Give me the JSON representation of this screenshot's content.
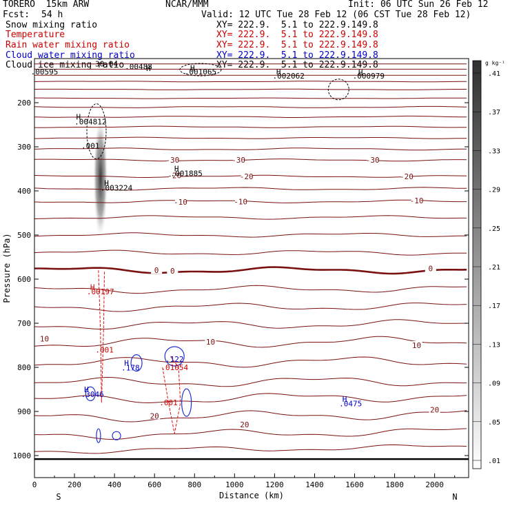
{
  "header": {
    "model": "TORERO  15km ARW",
    "center": "NCAR/MMM",
    "init": "Init: 06 UTC Sun 26 Feb 12",
    "fcst_label": "Fcst:",
    "fcst_value": "54 h",
    "valid": "Valid: 12 UTC Tue 28 Feb 12 (06 CST Tue 28 Feb 12)"
  },
  "fields": [
    {
      "name": "Snow mixing ratio",
      "color": "#000000",
      "xy": "XY= 222.9.  5.1 to 222.9.149.8"
    },
    {
      "name": "Temperature",
      "color": "#cc0000",
      "xy": "XY= 222.9.  5.1 to 222.9.149.8"
    },
    {
      "name": "Rain water mixing ratio",
      "color": "#cc0000",
      "xy": "XY= 222.9.  5.1 to 222.9.149.8"
    },
    {
      "name": "Cloud water mixing ratio",
      "color": "#0000cc",
      "xy": "XY= 222.9.  5.1 to 222.9.149.8"
    },
    {
      "name": "Cloud ice mixing ratio",
      "color": "#000000",
      "xy": "XY= 222.9.  5.1 to 222.9.149.8"
    }
  ],
  "chart_data": {
    "type": "cross-section",
    "xlabel": "Distance (km)",
    "ylabel": "Pressure (hPa)",
    "xlim": [
      0,
      2170
    ],
    "ylim": [
      1050,
      100
    ],
    "x_ticks": [
      0,
      200,
      400,
      600,
      800,
      1000,
      1200,
      1400,
      1600,
      1800,
      2000
    ],
    "y_ticks": [
      200,
      300,
      400,
      500,
      600,
      700,
      800,
      900,
      1000
    ],
    "endpoints": {
      "left": "S",
      "right": "N"
    },
    "colorbar": {
      "unit": "g kg⁻¹",
      "labels": [
        ".01",
        ".05",
        ".09",
        ".13",
        ".17",
        ".21",
        ".25",
        ".29",
        ".33",
        ".37",
        ".41"
      ]
    },
    "temperature_labels": [
      {
        "text": "-30",
        "x": 690,
        "p": 330
      },
      {
        "text": "-30",
        "x": 1020,
        "p": 330
      },
      {
        "text": "-30",
        "x": 1690,
        "p": 330
      },
      {
        "text": "-20",
        "x": 700,
        "p": 365
      },
      {
        "text": "-20",
        "x": 1060,
        "p": 367
      },
      {
        "text": "-20",
        "x": 1860,
        "p": 367
      },
      {
        "text": "-10",
        "x": 730,
        "p": 425
      },
      {
        "text": "-10",
        "x": 1030,
        "p": 424
      },
      {
        "text": "-10",
        "x": 1910,
        "p": 422
      },
      {
        "text": "0",
        "x": 610,
        "p": 580
      },
      {
        "text": "0",
        "x": 690,
        "p": 581
      },
      {
        "text": "0",
        "x": 1980,
        "p": 576
      },
      {
        "text": "10",
        "x": 50,
        "p": 735
      },
      {
        "text": "10",
        "x": 880,
        "p": 742
      },
      {
        "text": "10",
        "x": 1910,
        "p": 750
      },
      {
        "text": "20",
        "x": 600,
        "p": 910
      },
      {
        "text": "20",
        "x": 1050,
        "p": 930
      },
      {
        "text": "20",
        "x": 2000,
        "p": 896
      }
    ],
    "maxima": [
      {
        "text": ".00595",
        "x": 50,
        "p": 130,
        "color": "#000000"
      },
      {
        "text": ".00488",
        "x": 520,
        "p": 118,
        "color": "#000000"
      },
      {
        "text": ".001065",
        "x": 830,
        "p": 130,
        "color": "#000000"
      },
      {
        "text": ".002062",
        "x": 1270,
        "p": 139,
        "color": "#000000"
      },
      {
        "text": ".000979",
        "x": 1670,
        "p": 139,
        "color": "#000000"
      },
      {
        "text": ".004812",
        "x": 280,
        "p": 243,
        "color": "#000000"
      },
      {
        "text": ".001",
        "x": 280,
        "p": 298,
        "color": "#000000"
      },
      {
        "text": ".003224",
        "x": 410,
        "p": 393,
        "color": "#000000"
      },
      {
        "text": ".001885",
        "x": 760,
        "p": 360,
        "color": "#000000"
      },
      {
        "text": "30.04",
        "x": 360,
        "p": 112,
        "color": "#000000"
      },
      {
        "text": ".00197",
        "x": 330,
        "p": 628,
        "color": "#cc0000"
      },
      {
        "text": ".001",
        "x": 350,
        "p": 760,
        "color": "#cc0000"
      },
      {
        "text": ".01054",
        "x": 700,
        "p": 800,
        "color": "#cc0000"
      },
      {
        "text": ".001",
        "x": 670,
        "p": 880,
        "color": "#cc0000"
      },
      {
        "text": ".122",
        "x": 700,
        "p": 781,
        "color": "#0000cc"
      },
      {
        "text": ".178",
        "x": 480,
        "p": 801,
        "color": "#0000cc"
      },
      {
        "text": ".3046",
        "x": 290,
        "p": 861,
        "color": "#0000cc"
      },
      {
        "text": ".0475",
        "x": 1580,
        "p": 882,
        "color": "#0000cc"
      }
    ],
    "h_markers": [
      {
        "x": 570,
        "p": 122,
        "color": "#000000"
      },
      {
        "x": 790,
        "p": 121,
        "color": "#000000"
      },
      {
        "x": 1220,
        "p": 130,
        "color": "#000000"
      },
      {
        "x": 1630,
        "p": 131,
        "color": "#000000"
      },
      {
        "x": 220,
        "p": 232,
        "color": "#000000"
      },
      {
        "x": 360,
        "p": 382,
        "color": "#000000"
      },
      {
        "x": 710,
        "p": 349,
        "color": "#000000"
      },
      {
        "x": 290,
        "p": 618,
        "color": "#cc0000"
      },
      {
        "x": 460,
        "p": 790,
        "color": "#0000cc"
      },
      {
        "x": 260,
        "p": 850,
        "color": "#0000cc"
      },
      {
        "x": 1550,
        "p": 872,
        "color": "#0000cc"
      }
    ]
  }
}
